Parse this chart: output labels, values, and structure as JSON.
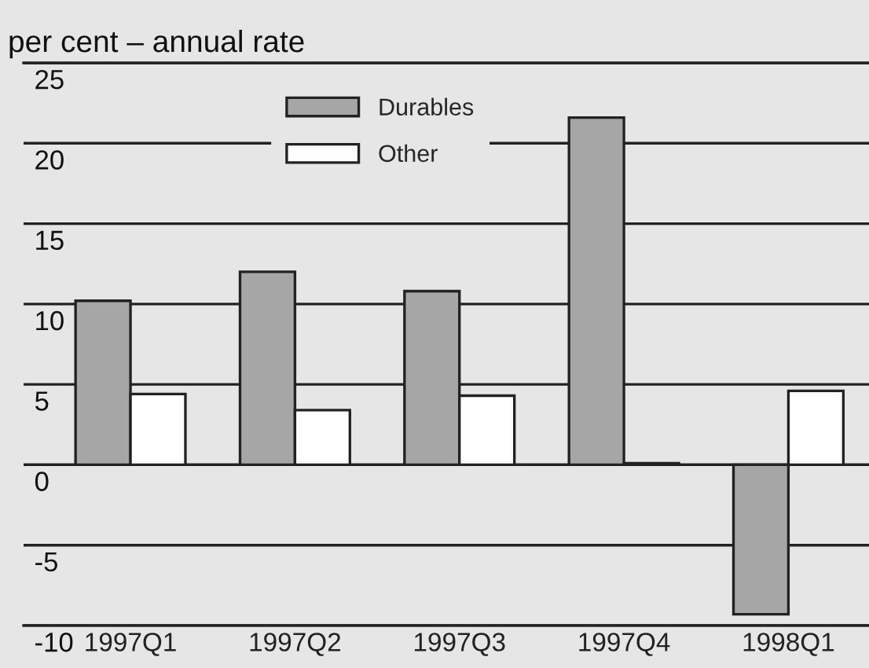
{
  "chart_data": {
    "type": "bar",
    "title": "per cent – annual rate",
    "categories": [
      "1997Q1",
      "1997Q2",
      "1997Q3",
      "1997Q4",
      "1998Q1"
    ],
    "series": [
      {
        "name": "Durables",
        "color": "#a6a6a6",
        "values": [
          10.2,
          12.0,
          10.8,
          21.6,
          -9.3
        ]
      },
      {
        "name": "Other",
        "color": "#ffffff",
        "values": [
          4.4,
          3.4,
          4.3,
          0.1,
          4.6
        ]
      }
    ],
    "ylim": [
      -10,
      25
    ],
    "yticks": [
      -10,
      -5,
      0,
      5,
      10,
      15,
      20,
      25
    ],
    "grid": "y",
    "legend": "top"
  }
}
